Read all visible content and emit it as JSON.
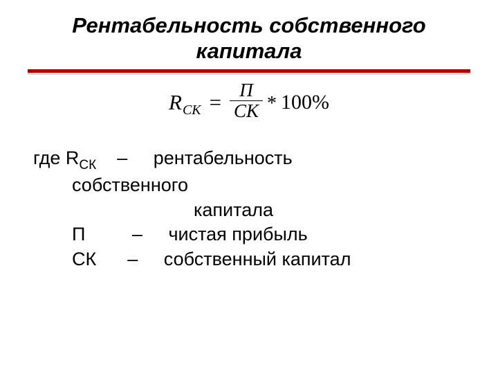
{
  "title": "Рентабельность собственного капитала",
  "formula": {
    "lhs_base": "R",
    "lhs_sub": "СК",
    "eq": "=",
    "frac_num": "П",
    "frac_den": "СК",
    "mult": "*",
    "percent": "100%"
  },
  "defs": {
    "where": "где ",
    "r_base": "R",
    "r_sub": "СК",
    "r_gap": "    –     ",
    "r_text1": "рентабельность",
    "r_text2_indent": "собственного",
    "r_text3": "капитала",
    "p_sym": "П",
    "p_gap": "         –     ",
    "p_text": "чистая прибыль",
    "sk_sym": "СК",
    "sk_gap": "      –     ",
    "sk_text": "собственный капитал"
  },
  "style": {
    "background": "#ffffff",
    "text_color": "#000000",
    "divider_color": "#b30000",
    "title_fontsize": 31,
    "body_fontsize": 27,
    "formula_fontsize": 31
  }
}
